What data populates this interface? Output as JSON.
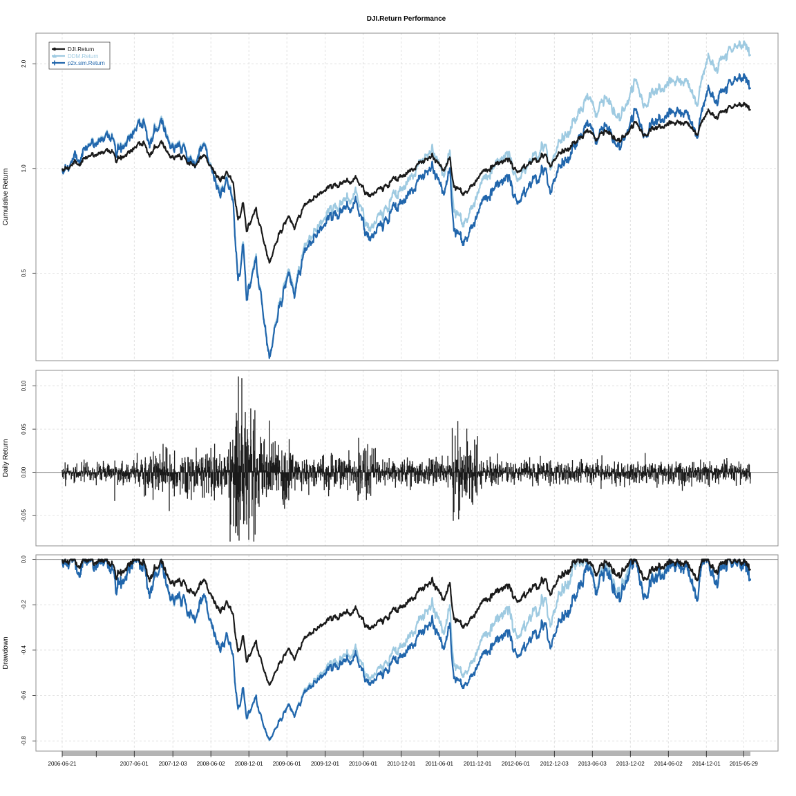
{
  "chart_data": {
    "title": "DJI.Return Performance",
    "type": "line",
    "legend": {
      "placement": "top-left",
      "entries": [
        {
          "name": "DJI.Return",
          "color": "#1a1a1a",
          "marker": "circle"
        },
        {
          "name": "DDM.Return",
          "color": "#9ecae1",
          "marker": "triangle"
        },
        {
          "name": "p2x.sim.Return",
          "color": "#2166ac",
          "marker": "plus"
        }
      ]
    },
    "x_tick_labels": [
      "2006-06-21",
      "2007-06-01",
      "2007-12-03",
      "2008-06-02",
      "2008-12-01",
      "2009-06-01",
      "2009-12-01",
      "2010-06-01",
      "2010-12-01",
      "2011-06-01",
      "2011-12-01",
      "2012-06-01",
      "2012-12-03",
      "2013-06-03",
      "2013-12-02",
      "2014-06-02",
      "2014-12-01",
      "2015-05-29"
    ],
    "x_range": [
      "2006-06-21",
      "2015-06-30"
    ],
    "panels": [
      {
        "id": "cumulative",
        "ylabel": "Cumulative Return",
        "y_scale": "log",
        "ylim": [
          0.28,
          2.45
        ],
        "y_ticks": [
          0.5,
          1.0,
          2.0
        ],
        "y_tick_labels": [
          "0.5",
          "1.0",
          "2.0"
        ],
        "grid": true,
        "series": [
          {
            "name": "DJI.Return",
            "color": "#1a1a1a",
            "points": [
              [
                "2006-06-21",
                1.0
              ],
              [
                "2006-09-01",
                1.03
              ],
              [
                "2006-12-01",
                1.1
              ],
              [
                "2007-02-20",
                1.13
              ],
              [
                "2007-03-05",
                1.05
              ],
              [
                "2007-07-15",
                1.2
              ],
              [
                "2007-08-15",
                1.1
              ],
              [
                "2007-10-09",
                1.2
              ],
              [
                "2007-11-26",
                1.08
              ],
              [
                "2008-01-02",
                1.1
              ],
              [
                "2008-03-10",
                1.0
              ],
              [
                "2008-05-01",
                1.1
              ],
              [
                "2008-07-15",
                0.92
              ],
              [
                "2008-08-15",
                0.98
              ],
              [
                "2008-09-15",
                0.93
              ],
              [
                "2008-10-10",
                0.7
              ],
              [
                "2008-11-04",
                0.8
              ],
              [
                "2008-11-20",
                0.66
              ],
              [
                "2009-01-05",
                0.76
              ],
              [
                "2009-03-09",
                0.54
              ],
              [
                "2009-05-01",
                0.66
              ],
              [
                "2009-06-12",
                0.72
              ],
              [
                "2009-07-08",
                0.68
              ],
              [
                "2009-09-01",
                0.8
              ],
              [
                "2009-12-01",
                0.87
              ],
              [
                "2010-04-26",
                0.93
              ],
              [
                "2010-07-02",
                0.83
              ],
              [
                "2010-10-01",
                0.91
              ],
              [
                "2010-12-31",
                0.97
              ],
              [
                "2011-04-29",
                1.08
              ],
              [
                "2011-06-15",
                1.0
              ],
              [
                "2011-07-22",
                1.05
              ],
              [
                "2011-08-10",
                0.89
              ],
              [
                "2011-10-03",
                0.85
              ],
              [
                "2011-12-30",
                0.98
              ],
              [
                "2012-05-01",
                1.07
              ],
              [
                "2012-06-04",
                0.98
              ],
              [
                "2012-10-05",
                1.1
              ],
              [
                "2012-11-15",
                1.02
              ],
              [
                "2013-01-02",
                1.1
              ],
              [
                "2013-05-21",
                1.28
              ],
              [
                "2013-06-24",
                1.2
              ],
              [
                "2013-08-01",
                1.29
              ],
              [
                "2013-10-08",
                1.19
              ],
              [
                "2013-12-31",
                1.36
              ],
              [
                "2014-02-03",
                1.26
              ],
              [
                "2014-07-17",
                1.39
              ],
              [
                "2014-10-15",
                1.27
              ],
              [
                "2014-12-05",
                1.45
              ],
              [
                "2015-01-16",
                1.4
              ],
              [
                "2015-03-02",
                1.48
              ],
              [
                "2015-05-19",
                1.52
              ],
              [
                "2015-06-29",
                1.48
              ]
            ]
          },
          {
            "name": "DDM.Return",
            "color": "#9ecae1",
            "points": [
              [
                "2006-06-21",
                1.0
              ],
              [
                "2006-09-01",
                1.06
              ],
              [
                "2006-12-01",
                1.2
              ],
              [
                "2007-02-20",
                1.26
              ],
              [
                "2007-03-05",
                1.11
              ],
              [
                "2007-07-15",
                1.4
              ],
              [
                "2007-08-15",
                1.2
              ],
              [
                "2007-10-09",
                1.41
              ],
              [
                "2007-11-26",
                1.17
              ],
              [
                "2008-01-02",
                1.2
              ],
              [
                "2008-03-10",
                1.0
              ],
              [
                "2008-05-01",
                1.2
              ],
              [
                "2008-07-15",
                0.84
              ],
              [
                "2008-08-15",
                0.95
              ],
              [
                "2008-09-15",
                0.85
              ],
              [
                "2008-10-10",
                0.46
              ],
              [
                "2008-11-04",
                0.62
              ],
              [
                "2008-11-20",
                0.42
              ],
              [
                "2009-01-05",
                0.55
              ],
              [
                "2009-03-09",
                0.29
              ],
              [
                "2009-05-01",
                0.42
              ],
              [
                "2009-06-12",
                0.5
              ],
              [
                "2009-07-08",
                0.45
              ],
              [
                "2009-09-01",
                0.62
              ],
              [
                "2009-12-01",
                0.73
              ],
              [
                "2010-04-26",
                0.84
              ],
              [
                "2010-07-02",
                0.66
              ],
              [
                "2010-10-01",
                0.8
              ],
              [
                "2010-12-31",
                0.91
              ],
              [
                "2011-04-29",
                1.12
              ],
              [
                "2011-06-15",
                0.98
              ],
              [
                "2011-07-22",
                1.07
              ],
              [
                "2011-08-10",
                0.76
              ],
              [
                "2011-10-03",
                0.7
              ],
              [
                "2011-12-30",
                0.93
              ],
              [
                "2012-05-01",
                1.12
              ],
              [
                "2012-06-04",
                0.93
              ],
              [
                "2012-10-05",
                1.18
              ],
              [
                "2012-11-15",
                1.01
              ],
              [
                "2013-01-02",
                1.18
              ],
              [
                "2013-05-21",
                1.6
              ],
              [
                "2013-06-24",
                1.4
              ],
              [
                "2013-08-01",
                1.62
              ],
              [
                "2013-10-08",
                1.37
              ],
              [
                "2013-12-31",
                1.8
              ],
              [
                "2014-02-03",
                1.55
              ],
              [
                "2014-07-17",
                1.88
              ],
              [
                "2014-10-15",
                1.57
              ],
              [
                "2014-12-05",
                2.05
              ],
              [
                "2015-01-16",
                1.92
              ],
              [
                "2015-03-02",
                2.14
              ],
              [
                "2015-05-19",
                2.25
              ],
              [
                "2015-06-29",
                2.13
              ]
            ]
          },
          {
            "name": "p2x.sim.Return",
            "color": "#2166ac",
            "points": [
              [
                "2006-06-21",
                1.0
              ],
              [
                "2006-09-01",
                1.06
              ],
              [
                "2006-12-01",
                1.19
              ],
              [
                "2007-02-20",
                1.25
              ],
              [
                "2007-03-05",
                1.1
              ],
              [
                "2007-07-15",
                1.39
              ],
              [
                "2007-08-15",
                1.19
              ],
              [
                "2007-10-09",
                1.39
              ],
              [
                "2007-11-26",
                1.16
              ],
              [
                "2008-01-02",
                1.19
              ],
              [
                "2008-03-10",
                0.99
              ],
              [
                "2008-05-01",
                1.19
              ],
              [
                "2008-07-15",
                0.83
              ],
              [
                "2008-08-15",
                0.94
              ],
              [
                "2008-09-15",
                0.84
              ],
              [
                "2008-10-10",
                0.46
              ],
              [
                "2008-11-04",
                0.61
              ],
              [
                "2008-11-20",
                0.42
              ],
              [
                "2009-01-05",
                0.54
              ],
              [
                "2009-03-09",
                0.29
              ],
              [
                "2009-05-01",
                0.41
              ],
              [
                "2009-06-12",
                0.49
              ],
              [
                "2009-07-08",
                0.44
              ],
              [
                "2009-09-01",
                0.6
              ],
              [
                "2009-12-01",
                0.7
              ],
              [
                "2010-04-26",
                0.79
              ],
              [
                "2010-07-02",
                0.62
              ],
              [
                "2010-10-01",
                0.74
              ],
              [
                "2010-12-31",
                0.83
              ],
              [
                "2011-04-29",
                1.0
              ],
              [
                "2011-06-15",
                0.87
              ],
              [
                "2011-07-22",
                0.95
              ],
              [
                "2011-08-10",
                0.67
              ],
              [
                "2011-10-03",
                0.62
              ],
              [
                "2011-12-30",
                0.81
              ],
              [
                "2012-05-01",
                0.96
              ],
              [
                "2012-06-04",
                0.8
              ],
              [
                "2012-10-05",
                1.01
              ],
              [
                "2012-11-15",
                0.86
              ],
              [
                "2013-01-02",
                1.0
              ],
              [
                "2013-05-21",
                1.34
              ],
              [
                "2013-06-24",
                1.17
              ],
              [
                "2013-08-01",
                1.35
              ],
              [
                "2013-10-08",
                1.13
              ],
              [
                "2013-12-31",
                1.48
              ],
              [
                "2014-02-03",
                1.27
              ],
              [
                "2014-07-17",
                1.53
              ],
              [
                "2014-10-15",
                1.27
              ],
              [
                "2014-12-05",
                1.66
              ],
              [
                "2015-01-16",
                1.55
              ],
              [
                "2015-03-02",
                1.72
              ],
              [
                "2015-05-19",
                1.81
              ],
              [
                "2015-06-29",
                1.71
              ]
            ]
          }
        ]
      },
      {
        "id": "daily",
        "ylabel": "Daily Return",
        "y_scale": "linear",
        "ylim": [
          -0.085,
          0.118
        ],
        "y_ticks": [
          -0.05,
          0.0,
          0.05,
          0.1
        ],
        "y_tick_labels": [
          "-0.05",
          "0.00",
          "0.05",
          "0.10"
        ],
        "grid": true,
        "series": [
          {
            "name": "DJI.Return",
            "color": "#1a1a1a",
            "style": "histogram",
            "volatility_regimes": [
              {
                "start": "2006-06-21",
                "end": "2007-02-26",
                "sd": 0.006
              },
              {
                "start": "2007-02-27",
                "end": "2007-07-15",
                "sd": 0.009
              },
              {
                "start": "2007-07-16",
                "end": "2008-08-31",
                "sd": 0.013
              },
              {
                "start": "2008-09-01",
                "end": "2008-12-31",
                "sd": 0.035
              },
              {
                "start": "2009-01-01",
                "end": "2009-06-30",
                "sd": 0.02
              },
              {
                "start": "2009-07-01",
                "end": "2010-04-30",
                "sd": 0.009
              },
              {
                "start": "2010-05-01",
                "end": "2010-07-31",
                "sd": 0.014
              },
              {
                "start": "2010-08-01",
                "end": "2011-07-31",
                "sd": 0.008
              },
              {
                "start": "2011-08-01",
                "end": "2011-11-30",
                "sd": 0.02
              },
              {
                "start": "2011-12-01",
                "end": "2015-06-30",
                "sd": 0.007
              }
            ],
            "extremes": [
              [
                "2007-02-27",
                -0.033
              ],
              [
                "2008-09-29",
                -0.07
              ],
              [
                "2008-10-06",
                0.06
              ],
              [
                "2008-10-09",
                -0.073
              ],
              [
                "2008-10-13",
                0.111
              ],
              [
                "2008-10-15",
                -0.079
              ],
              [
                "2008-10-20",
                0.045
              ],
              [
                "2008-10-22",
                -0.055
              ],
              [
                "2008-10-28",
                0.109
              ],
              [
                "2008-11-13",
                0.07
              ],
              [
                "2008-11-20",
                -0.055
              ],
              [
                "2008-11-24",
                0.05
              ],
              [
                "2008-12-01",
                -0.078
              ],
              [
                "2009-03-10",
                0.06
              ],
              [
                "2009-01-20",
                -0.04
              ],
              [
                "2010-05-06",
                -0.033
              ],
              [
                "2010-05-10",
                0.04
              ],
              [
                "2011-08-08",
                -0.056
              ],
              [
                "2011-08-09",
                0.04
              ],
              [
                "2011-08-10",
                -0.046
              ],
              [
                "2011-11-30",
                0.042
              ]
            ]
          }
        ]
      },
      {
        "id": "drawdown",
        "ylabel": "Drawdown",
        "y_scale": "linear",
        "ylim": [
          -0.845,
          0.02
        ],
        "y_ticks": [
          -0.8,
          -0.6,
          -0.4,
          -0.2,
          0.0
        ],
        "y_tick_labels": [
          "-0.8",
          "-0.6",
          "-0.4",
          "-0.2",
          "0.0"
        ],
        "grid": true,
        "series": [
          {
            "name": "DJI.Return",
            "color": "#1a1a1a",
            "derived_from": "cumulative"
          },
          {
            "name": "DDM.Return",
            "color": "#9ecae1",
            "derived_from": "cumulative"
          },
          {
            "name": "p2x.sim.Return",
            "color": "#2166ac",
            "derived_from": "cumulative"
          }
        ]
      }
    ]
  }
}
